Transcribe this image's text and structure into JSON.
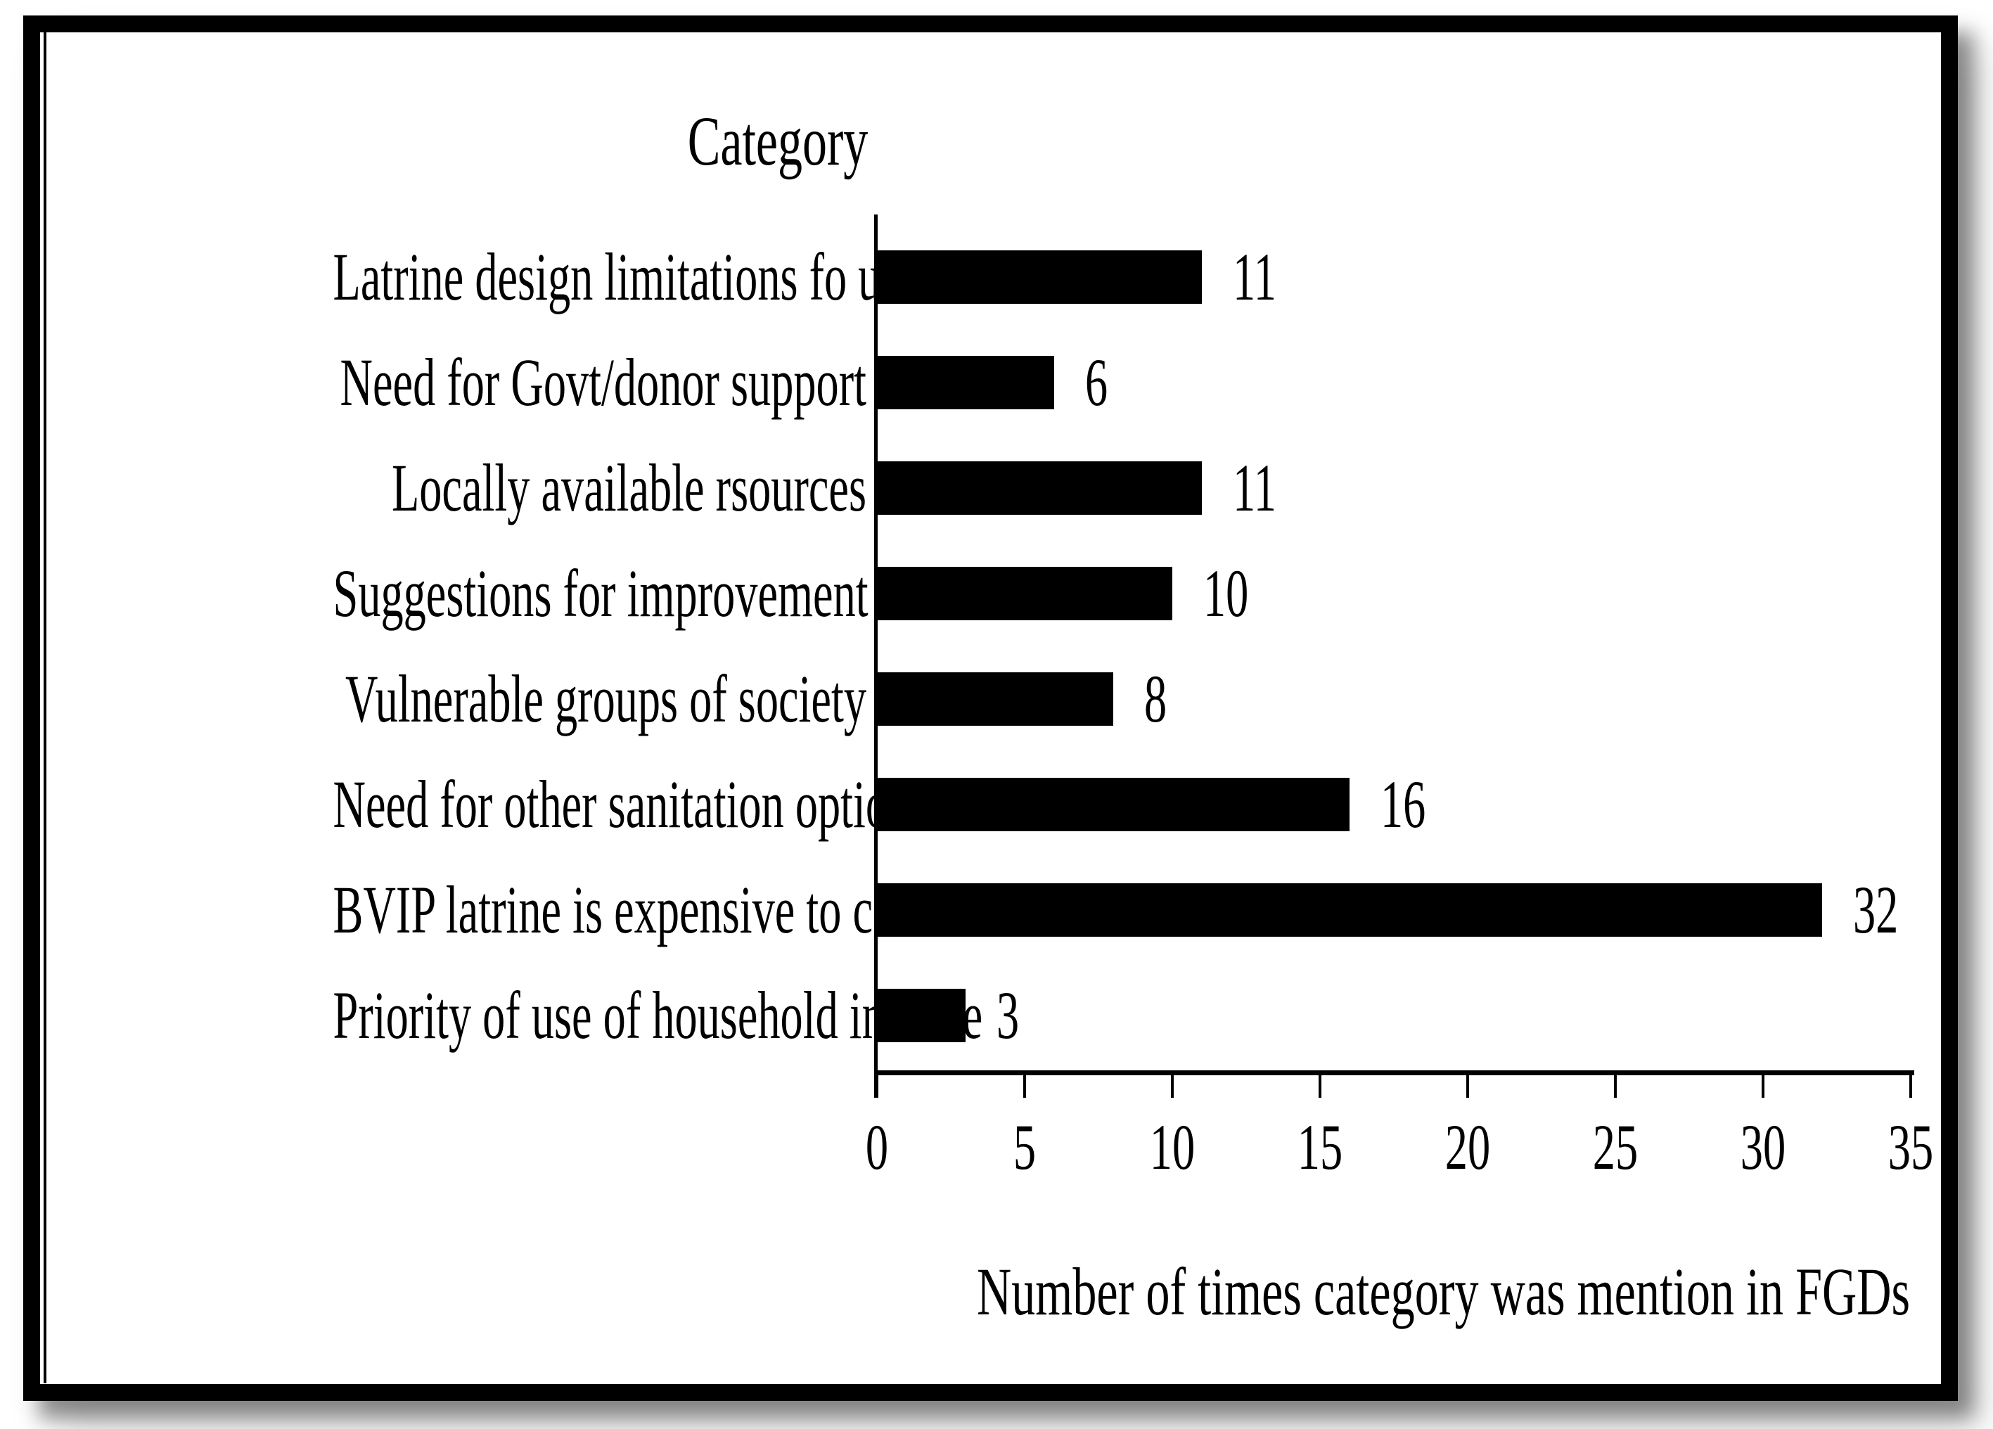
{
  "chart_data": {
    "type": "bar",
    "orientation": "horizontal",
    "title": "Category",
    "xlabel": "Number of times category was mention in FGDs",
    "categories": [
      "Latrine design limitations fo use",
      "Need for Govt/donor support",
      "Locally available rsources",
      "Suggestions for improvement",
      "Vulnerable groups of society",
      "Need for other sanitation options",
      "BVIP latrine is expensive to construct",
      "Priority of use of household income"
    ],
    "values": [
      11,
      6,
      11,
      10,
      8,
      16,
      32,
      3
    ],
    "xlim": [
      0,
      35
    ],
    "xticks": [
      0,
      5,
      10,
      15,
      20,
      25,
      30,
      35
    ],
    "grid": false,
    "legend": null,
    "show_value_labels": true,
    "bar_color": "#000000",
    "text_color": "#000000",
    "background_color": "#ffffff",
    "frame_color": "#000000"
  }
}
